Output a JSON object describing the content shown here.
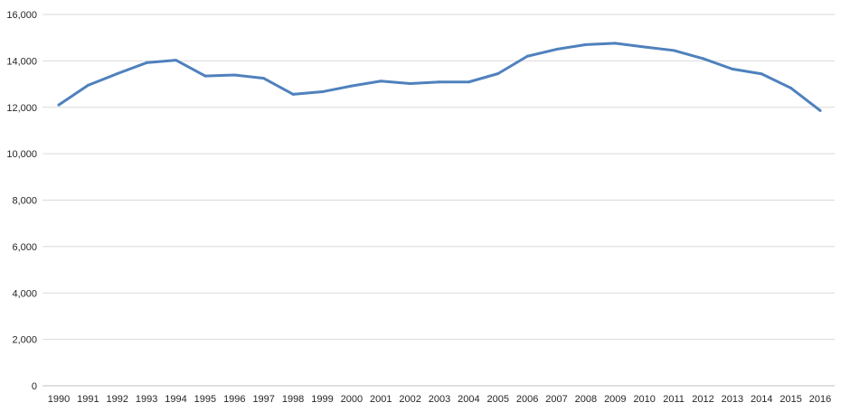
{
  "chart_data": {
    "type": "line",
    "title": "",
    "xlabel": "",
    "ylabel": "",
    "categories": [
      "1990",
      "1991",
      "1992",
      "1993",
      "1994",
      "1995",
      "1996",
      "1997",
      "1998",
      "1999",
      "2000",
      "2001",
      "2002",
      "2003",
      "2004",
      "2005",
      "2006",
      "2007",
      "2008",
      "2009",
      "2010",
      "2011",
      "2012",
      "2013",
      "2014",
      "2015",
      "2016"
    ],
    "series": [
      {
        "values": [
          12100,
          12950,
          13450,
          13920,
          14030,
          13350,
          13390,
          13250,
          12560,
          12670,
          12920,
          13130,
          13020,
          13090,
          13090,
          13450,
          14200,
          14500,
          14700,
          14760,
          14600,
          14450,
          14100,
          13650,
          13440,
          12830,
          11860
        ]
      }
    ],
    "ylim": [
      0,
      16000
    ],
    "yticks": [
      0,
      2000,
      4000,
      6000,
      8000,
      10000,
      12000,
      14000,
      16000
    ],
    "ytick_labels": [
      "0",
      "2,000",
      "4,000",
      "6,000",
      "8,000",
      "10,000",
      "12,000",
      "14,000",
      "16,000"
    ],
    "grid": true,
    "legend": "none",
    "line_color": "#4f81bd"
  }
}
